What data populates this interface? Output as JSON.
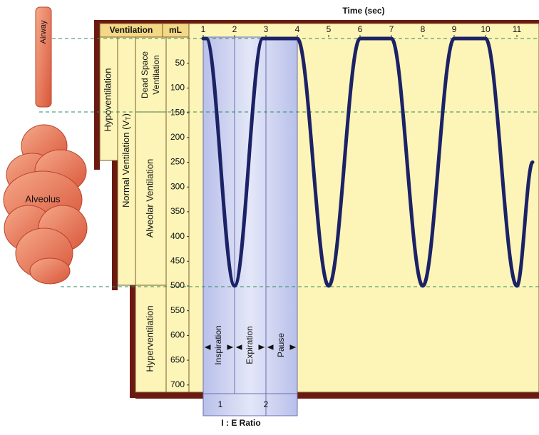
{
  "illustration": {
    "airway": "Airway",
    "alveolus": "Alveolus"
  },
  "table": {
    "header": "Ventilation",
    "unit": "mL",
    "hypoventilation": "Hypoventilation",
    "normal": {
      "text": "Normal Ventilation (V",
      "sub": "T",
      "close": ")"
    },
    "dead_space": [
      "Dead Space",
      "Ventilation"
    ],
    "alveolar": "Alveolar Ventilation",
    "hyperventilation": "Hyperventilation"
  },
  "waveform": {
    "x_label": "Time (sec)",
    "x": [
      1,
      1.1,
      2,
      2.9,
      3,
      4,
      5,
      6,
      7,
      8,
      9,
      10,
      11,
      11.5
    ],
    "values": [
      0,
      0,
      500,
      0,
      0,
      0,
      500,
      0,
      0,
      500,
      0,
      0,
      500,
      250
    ],
    "xticks": [
      1,
      2,
      3,
      4,
      5,
      6,
      7,
      8,
      9,
      10,
      11
    ],
    "yticks": [
      50,
      100,
      150,
      200,
      250,
      300,
      350,
      400,
      450,
      500,
      550,
      600,
      650,
      700
    ]
  },
  "phases": {
    "inspiration": "Inspiration",
    "expiration": "Expiration",
    "pause": "Pause"
  },
  "ratio": {
    "inspiration": "1",
    "expiration": "2",
    "label": "I : E Ratio"
  }
}
